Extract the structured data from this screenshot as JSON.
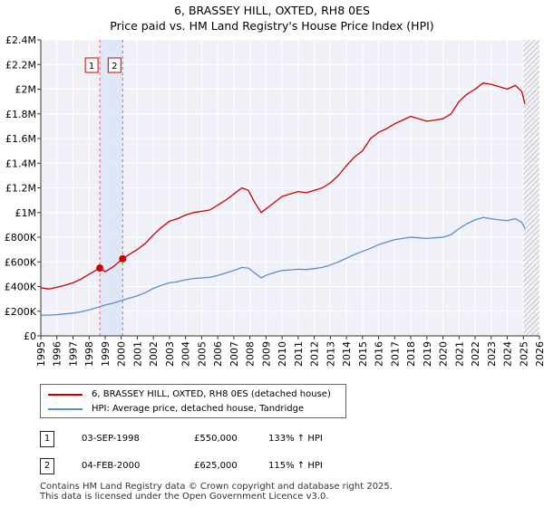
{
  "chart_data": {
    "type": "line",
    "title": "6, BRASSEY HILL, OXTED, RH8 0ES",
    "subtitle": "Price paid vs. HM Land Registry's House Price Index (HPI)",
    "xlabel": "",
    "ylabel": "",
    "xlim": [
      1995,
      2026
    ],
    "ylim": [
      0,
      2400000
    ],
    "x_ticks": [
      "1995",
      "1996",
      "1997",
      "1998",
      "1999",
      "2000",
      "2001",
      "2002",
      "2003",
      "2004",
      "2005",
      "2006",
      "2007",
      "2008",
      "2009",
      "2010",
      "2011",
      "2012",
      "2013",
      "2014",
      "2015",
      "2016",
      "2017",
      "2018",
      "2019",
      "2020",
      "2021",
      "2022",
      "2023",
      "2024",
      "2025",
      "2026"
    ],
    "y_ticks": [
      {
        "value": 0,
        "label": "£0"
      },
      {
        "value": 200000,
        "label": "£200K"
      },
      {
        "value": 400000,
        "label": "£400K"
      },
      {
        "value": 600000,
        "label": "£600K"
      },
      {
        "value": 800000,
        "label": "£800K"
      },
      {
        "value": 1000000,
        "label": "£1M"
      },
      {
        "value": 1200000,
        "label": "£1.2M"
      },
      {
        "value": 1400000,
        "label": "£1.4M"
      },
      {
        "value": 1600000,
        "label": "£1.6M"
      },
      {
        "value": 1800000,
        "label": "£1.8M"
      },
      {
        "value": 2000000,
        "label": "£2M"
      },
      {
        "value": 2200000,
        "label": "£2.2M"
      },
      {
        "value": 2400000,
        "label": "£2.4M"
      }
    ],
    "grid": true,
    "series": [
      {
        "name": "6, BRASSEY HILL, OXTED, RH8 0ES (detached house)",
        "color": "#cc0000",
        "x": [
          1995.0,
          1995.5,
          1996.0,
          1996.5,
          1997.0,
          1997.5,
          1998.0,
          1998.67,
          1999.0,
          1999.5,
          2000.09,
          2000.5,
          2001.0,
          2001.5,
          2002.0,
          2002.5,
          2003.0,
          2003.5,
          2004.0,
          2004.5,
          2005.0,
          2005.5,
          2006.0,
          2006.5,
          2007.0,
          2007.5,
          2007.9,
          2008.3,
          2008.7,
          2009.0,
          2009.3,
          2009.7,
          2010.0,
          2010.5,
          2011.0,
          2011.5,
          2012.0,
          2012.5,
          2013.0,
          2013.5,
          2014.0,
          2014.5,
          2015.0,
          2015.5,
          2016.0,
          2016.5,
          2017.0,
          2017.5,
          2018.0,
          2018.5,
          2019.0,
          2019.5,
          2020.0,
          2020.5,
          2021.0,
          2021.5,
          2022.0,
          2022.5,
          2023.0,
          2023.5,
          2024.0,
          2024.5,
          2024.9,
          2025.1
        ],
        "values": [
          390000,
          380000,
          395000,
          410000,
          430000,
          460000,
          500000,
          550000,
          520000,
          560000,
          625000,
          660000,
          700000,
          750000,
          820000,
          880000,
          930000,
          950000,
          980000,
          1000000,
          1010000,
          1020000,
          1060000,
          1100000,
          1150000,
          1200000,
          1180000,
          1080000,
          1000000,
          1030000,
          1060000,
          1100000,
          1130000,
          1150000,
          1170000,
          1160000,
          1180000,
          1200000,
          1240000,
          1300000,
          1380000,
          1450000,
          1500000,
          1600000,
          1650000,
          1680000,
          1720000,
          1750000,
          1780000,
          1760000,
          1740000,
          1750000,
          1760000,
          1800000,
          1900000,
          1960000,
          2000000,
          2050000,
          2040000,
          2020000,
          2000000,
          2030000,
          1980000,
          1880000
        ]
      },
      {
        "name": "HPI: Average price, detached house, Tandridge",
        "color": "#5b8dc9",
        "x": [
          1995.0,
          1995.5,
          1996.0,
          1996.5,
          1997.0,
          1997.5,
          1998.0,
          1998.67,
          1999.0,
          1999.5,
          2000.09,
          2000.5,
          2001.0,
          2001.5,
          2002.0,
          2002.5,
          2003.0,
          2003.5,
          2004.0,
          2004.5,
          2005.0,
          2005.5,
          2006.0,
          2006.5,
          2007.0,
          2007.5,
          2007.9,
          2008.3,
          2008.7,
          2009.0,
          2009.3,
          2009.7,
          2010.0,
          2010.5,
          2011.0,
          2011.5,
          2012.0,
          2012.5,
          2013.0,
          2013.5,
          2014.0,
          2014.5,
          2015.0,
          2015.5,
          2016.0,
          2016.5,
          2017.0,
          2017.5,
          2018.0,
          2018.5,
          2019.0,
          2019.5,
          2020.0,
          2020.5,
          2021.0,
          2021.5,
          2022.0,
          2022.5,
          2023.0,
          2023.5,
          2024.0,
          2024.5,
          2024.9,
          2025.1
        ],
        "values": [
          168000,
          168000,
          172000,
          178000,
          185000,
          195000,
          210000,
          236000,
          250000,
          265000,
          290000,
          305000,
          325000,
          350000,
          385000,
          410000,
          430000,
          440000,
          455000,
          465000,
          470000,
          475000,
          490000,
          510000,
          530000,
          555000,
          550000,
          510000,
          470000,
          490000,
          505000,
          520000,
          530000,
          535000,
          540000,
          538000,
          545000,
          555000,
          575000,
          600000,
          630000,
          660000,
          685000,
          710000,
          740000,
          760000,
          780000,
          790000,
          800000,
          795000,
          790000,
          795000,
          800000,
          820000,
          870000,
          910000,
          940000,
          960000,
          950000,
          940000,
          935000,
          950000,
          920000,
          870000
        ]
      }
    ],
    "annotations": [
      {
        "id": "1",
        "x": 1998.67,
        "y": 550000
      },
      {
        "id": "2",
        "x": 2000.09,
        "y": 625000
      }
    ],
    "shaded_ranges": [
      {
        "from": 1998.67,
        "to": 2000.09
      }
    ],
    "hatched_from": 2025.0
  },
  "legend": {
    "property_label": "6, BRASSEY HILL, OXTED, RH8 0ES (detached house)",
    "hpi_label": "HPI: Average price, detached house, Tandridge"
  },
  "transactions": [
    {
      "num": "1",
      "date": "03-SEP-1998",
      "price": "£550,000",
      "hpi": "133% ↑ HPI"
    },
    {
      "num": "2",
      "date": "04-FEB-2000",
      "price": "£625,000",
      "hpi": "115% ↑ HPI"
    }
  ],
  "footer": {
    "line1": "Contains HM Land Registry data © Crown copyright and database right 2025.",
    "line2": "This data is licensed under the Open Government Licence v3.0."
  }
}
